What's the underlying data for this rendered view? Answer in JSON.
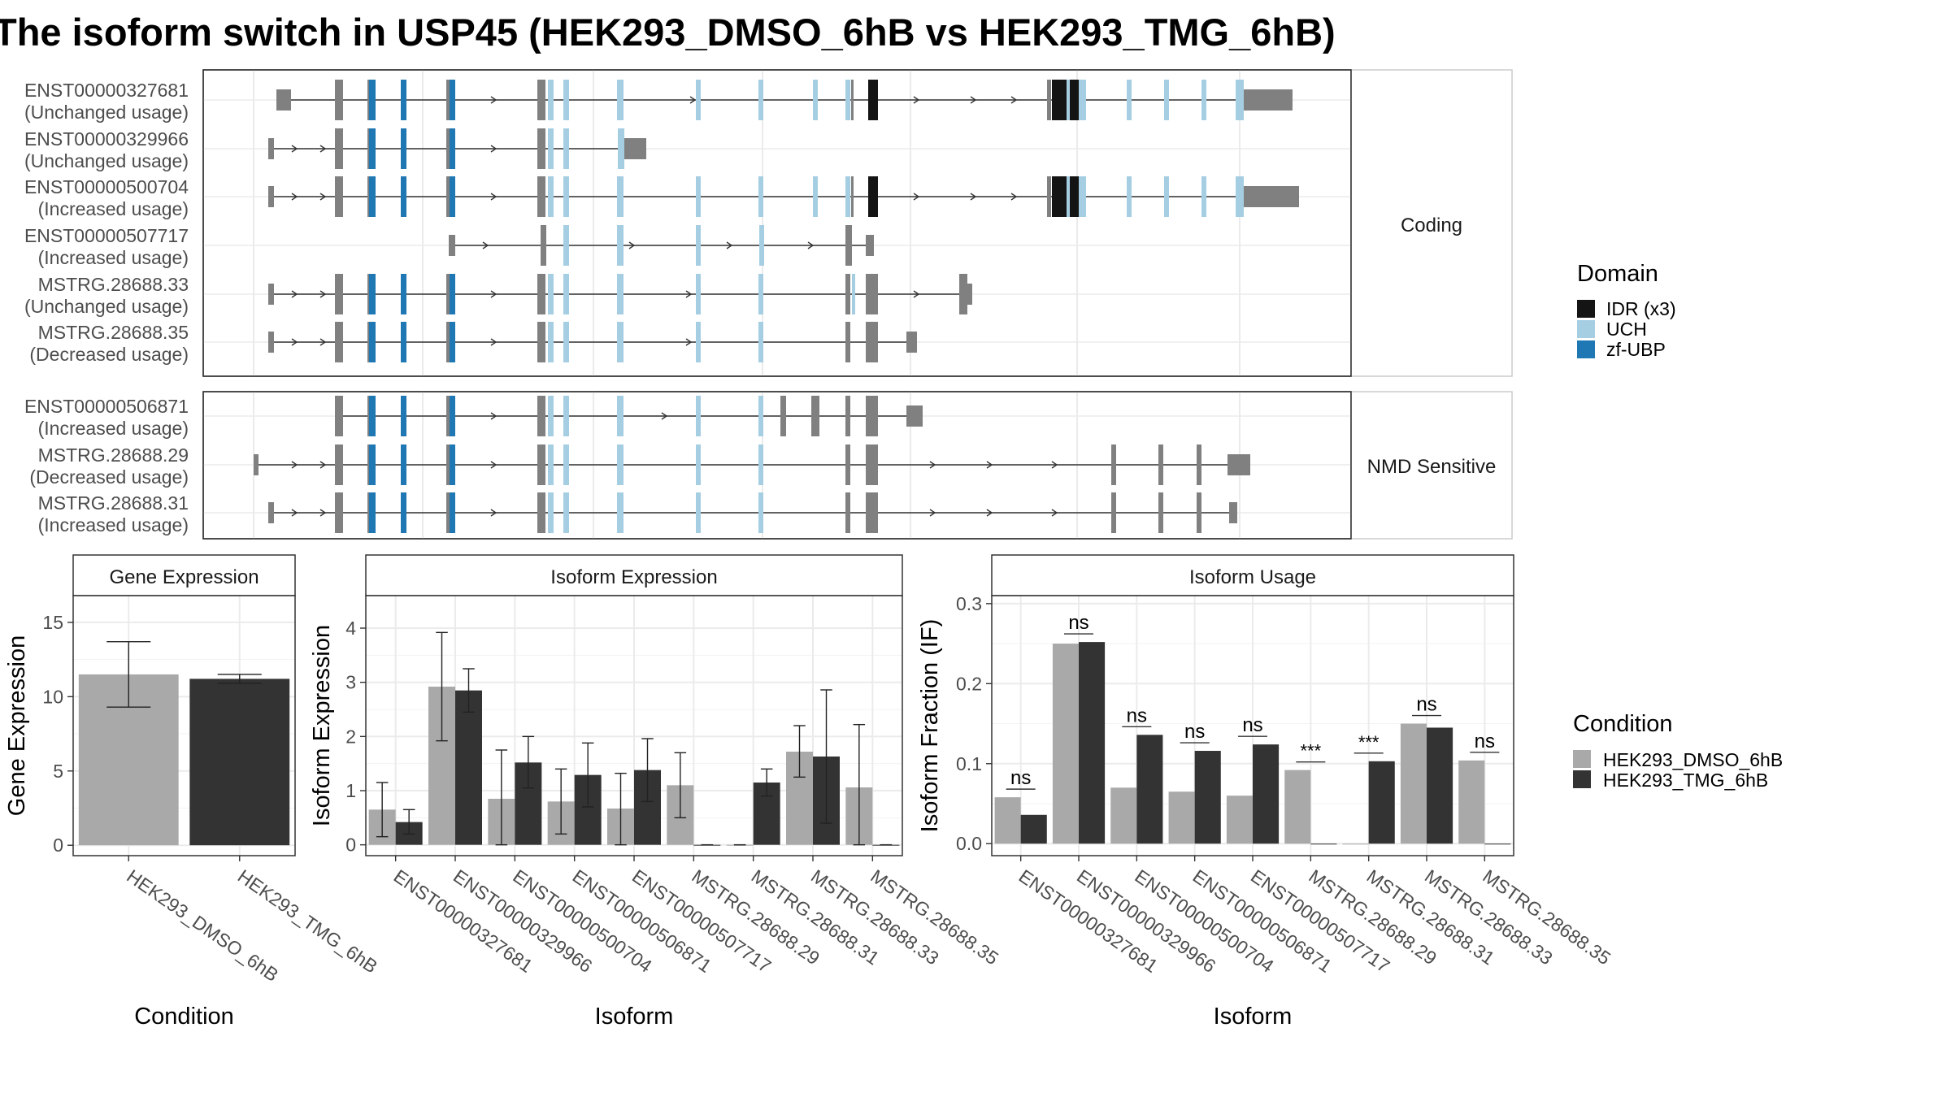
{
  "title": "The isoform switch in USP45 (HEK293_DMSO_6hB vs HEK293_TMG_6hB)",
  "colors": {
    "exon": "#808080",
    "idr": "#141414",
    "uch": "#a6cee3",
    "zf": "#1f78b4",
    "dmso": "#a9a9a9",
    "tmg": "#333333"
  },
  "structure": {
    "coding_label": "Coding",
    "nmd_label": "NMD Sensitive",
    "coding": [
      {
        "id": "ENST00000327681",
        "usage": "(Unchanged usage)"
      },
      {
        "id": "ENST00000329966",
        "usage": "(Unchanged usage)"
      },
      {
        "id": "ENST00000500704",
        "usage": "(Increased usage)"
      },
      {
        "id": "ENST00000507717",
        "usage": "(Increased usage)"
      },
      {
        "id": "MSTRG.28688.33",
        "usage": "(Unchanged usage)"
      },
      {
        "id": "MSTRG.28688.35",
        "usage": "(Decreased usage)"
      }
    ],
    "nmd": [
      {
        "id": "ENST00000506871",
        "usage": "(Increased usage)"
      },
      {
        "id": "MSTRG.28688.29",
        "usage": "(Decreased usage)"
      },
      {
        "id": "MSTRG.28688.31",
        "usage": "(Increased usage)"
      }
    ]
  },
  "legend_domain": {
    "title": "Domain",
    "items": [
      {
        "label": "IDR (x3)",
        "color": "#141414"
      },
      {
        "label": "UCH",
        "color": "#a6cee3"
      },
      {
        "label": "zf-UBP",
        "color": "#1f78b4"
      }
    ]
  },
  "legend_condition": {
    "title": "Condition",
    "items": [
      {
        "label": "HEK293_DMSO_6hB",
        "color": "#a9a9a9"
      },
      {
        "label": "HEK293_TMG_6hB",
        "color": "#333333"
      }
    ]
  },
  "chart_data": [
    {
      "type": "bar",
      "title": "Gene Expression",
      "xlabel": "Condition",
      "ylabel": "Gene Expression",
      "categories": [
        "HEK293_DMSO_6hB",
        "HEK293_TMG_6hB"
      ],
      "values": [
        11.5,
        11.2
      ],
      "err_low": [
        9.3,
        10.9
      ],
      "err_high": [
        13.7,
        11.5
      ],
      "yticks": [
        0,
        5,
        10,
        15
      ],
      "ylim": [
        -0.7,
        16.8
      ]
    },
    {
      "type": "bar",
      "title": "Isoform Expression",
      "xlabel": "Isoform",
      "ylabel": "Isoform Expression",
      "categories": [
        "ENST00000327681",
        "ENST00000329966",
        "ENST00000500704",
        "ENST00000506871",
        "ENST00000507717",
        "MSTRG.28688.29",
        "MSTRG.28688.31",
        "MSTRG.28688.33",
        "MSTRG.28688.35"
      ],
      "series": [
        {
          "name": "HEK293_DMSO_6hB",
          "values": [
            0.65,
            2.92,
            0.85,
            0.8,
            0.67,
            1.1,
            0,
            1.72,
            1.06
          ],
          "err_low": [
            0.15,
            1.92,
            0,
            0.2,
            0,
            0.5,
            0,
            1.25,
            0
          ],
          "err_high": [
            1.15,
            3.92,
            1.75,
            1.4,
            1.32,
            1.7,
            0,
            2.2,
            2.22
          ]
        },
        {
          "name": "HEK293_TMG_6hB",
          "values": [
            0.42,
            2.85,
            1.52,
            1.29,
            1.38,
            0,
            1.15,
            1.63,
            0
          ],
          "err_low": [
            0.2,
            2.45,
            1.05,
            0.7,
            0.8,
            0,
            0.9,
            0.4,
            0
          ],
          "err_high": [
            0.65,
            3.25,
            2.0,
            1.88,
            1.96,
            0,
            1.4,
            2.86,
            0
          ]
        }
      ],
      "yticks": [
        0,
        1,
        2,
        3,
        4
      ],
      "ylim": [
        -0.2,
        4.6
      ]
    },
    {
      "type": "bar",
      "title": "Isoform Usage",
      "xlabel": "Isoform",
      "ylabel": "Isoform Fraction (IF)",
      "categories": [
        "ENST00000327681",
        "ENST00000329966",
        "ENST00000500704",
        "ENST00000506871",
        "ENST00000507717",
        "MSTRG.28688.29",
        "MSTRG.28688.31",
        "MSTRG.28688.33",
        "MSTRG.28688.35"
      ],
      "series": [
        {
          "name": "HEK293_DMSO_6hB",
          "values": [
            0.058,
            0.25,
            0.07,
            0.065,
            0.06,
            0.092,
            0,
            0.15,
            0.104
          ]
        },
        {
          "name": "HEK293_TMG_6hB",
          "values": [
            0.036,
            0.252,
            0.136,
            0.116,
            0.124,
            0,
            0.103,
            0.145,
            0
          ]
        }
      ],
      "significance": [
        "ns",
        "ns",
        "ns",
        "ns",
        "ns",
        "***",
        "***",
        "ns",
        "ns"
      ],
      "yticks": [
        0.0,
        0.1,
        0.2,
        0.3
      ],
      "ylim": [
        -0.015,
        0.31
      ]
    }
  ]
}
